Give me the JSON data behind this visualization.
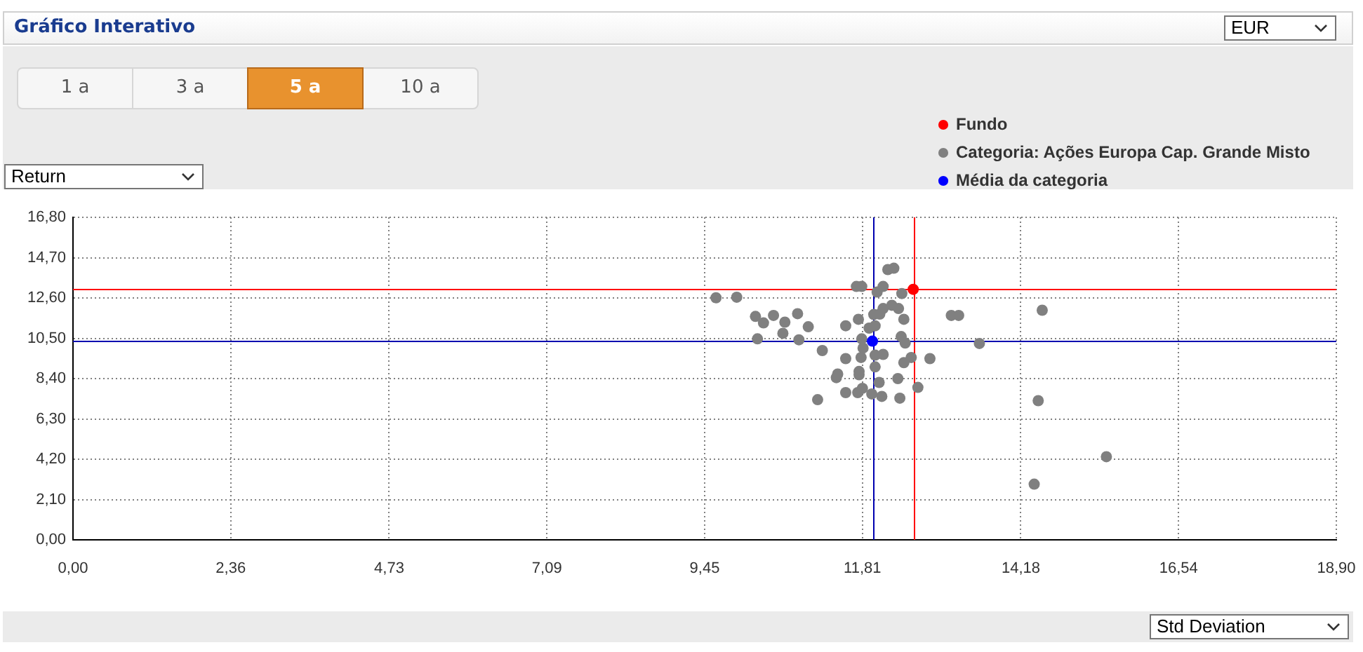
{
  "chart_data": {
    "type": "scatter",
    "title": "Gráfico Interativo",
    "xlabel": "Std Deviation",
    "ylabel": "Return",
    "annotations": [
      "EUR",
      "1 a",
      "3 a",
      "5 a",
      "10 a"
    ],
    "xlim": [
      0,
      18.9
    ],
    "xticks": [
      {
        "value": 0,
        "label": "0,00"
      },
      {
        "value": 2.36,
        "label": "2,36"
      },
      {
        "value": 4.73,
        "label": "4,73"
      },
      {
        "value": 7.09,
        "label": "7,09"
      },
      {
        "value": 9.45,
        "label": "9,45"
      },
      {
        "value": 11.81,
        "label": "11,81"
      },
      {
        "value": 14.18,
        "label": "14,18"
      },
      {
        "value": 16.54,
        "label": "16,54"
      },
      {
        "value": 18.9,
        "label": "18,90"
      }
    ],
    "ylim": [
      0,
      16.8
    ],
    "yticks": [
      {
        "value": 0,
        "label": "0,00"
      },
      {
        "value": 2.1,
        "label": "2,10"
      },
      {
        "value": 4.2,
        "label": "4,20"
      },
      {
        "value": 6.3,
        "label": "6,30"
      },
      {
        "value": 8.4,
        "label": "8,40"
      },
      {
        "value": 10.5,
        "label": "10,50"
      },
      {
        "value": 12.6,
        "label": "12,60"
      },
      {
        "value": 14.7,
        "label": "14,70"
      },
      {
        "value": 16.8,
        "label": "16,80"
      }
    ],
    "grid": true,
    "legend": "top right",
    "marker": "circle",
    "series": [
      {
        "name": "Fundo",
        "color": "#ff0000",
        "x": [
          12.57
        ],
        "values": [
          13.05
        ]
      },
      {
        "name": "Categoria: Ações Europa Cap. Grande Misto",
        "color": "#808080",
        "x": [
          12.19,
          12.28,
          11.72,
          11.8,
          12.12,
          12.03,
          12.4,
          9.62,
          9.93,
          10.21,
          10.48,
          10.33,
          10.65,
          10.84,
          11.0,
          10.24,
          10.62,
          10.86,
          11.21,
          11.56,
          11.75,
          11.98,
          12.12,
          12.25,
          12.35,
          12.07,
          12.43,
          11.91,
          12.0,
          11.8,
          12.39,
          12.45,
          11.82,
          11.79,
          11.56,
          12.0,
          12.12,
          12.43,
          12.54,
          12.82,
          12.0,
          11.76,
          11.76,
          11.44,
          11.42,
          12.34,
          12.64,
          11.56,
          11.74,
          11.81,
          11.95,
          12.1,
          12.37,
          11.14,
          13.14,
          13.25,
          14.5,
          13.56,
          14.44,
          15.46,
          14.38,
          12.06
        ],
        "values": [
          14.08,
          14.15,
          13.2,
          13.2,
          13.2,
          12.91,
          12.83,
          12.61,
          12.64,
          11.64,
          11.69,
          11.3,
          11.34,
          11.78,
          11.1,
          10.47,
          10.76,
          10.42,
          9.86,
          11.15,
          11.49,
          11.74,
          12.05,
          12.22,
          12.05,
          11.76,
          11.49,
          11.03,
          11.15,
          10.47,
          10.59,
          10.25,
          9.99,
          9.5,
          9.44,
          9.62,
          9.66,
          9.23,
          9.5,
          9.44,
          9.01,
          8.77,
          8.6,
          8.64,
          8.45,
          8.4,
          7.94,
          7.67,
          7.67,
          7.89,
          7.6,
          7.47,
          7.38,
          7.3,
          11.69,
          11.69,
          11.96,
          10.23,
          7.25,
          4.33,
          2.9,
          8.2
        ]
      },
      {
        "name": "Média da categoria",
        "color": "#0000ff",
        "x": [
          11.96
        ],
        "values": [
          10.35
        ]
      }
    ],
    "ref_lines": [
      {
        "axis": "x",
        "value": 12.57,
        "color": "#ff0000"
      },
      {
        "axis": "y",
        "value": 13.05,
        "color": "#ff0000"
      },
      {
        "axis": "x",
        "value": 11.96,
        "color": "#0000b0"
      },
      {
        "axis": "y",
        "value": 10.35,
        "color": "#0000b0"
      }
    ]
  }
}
